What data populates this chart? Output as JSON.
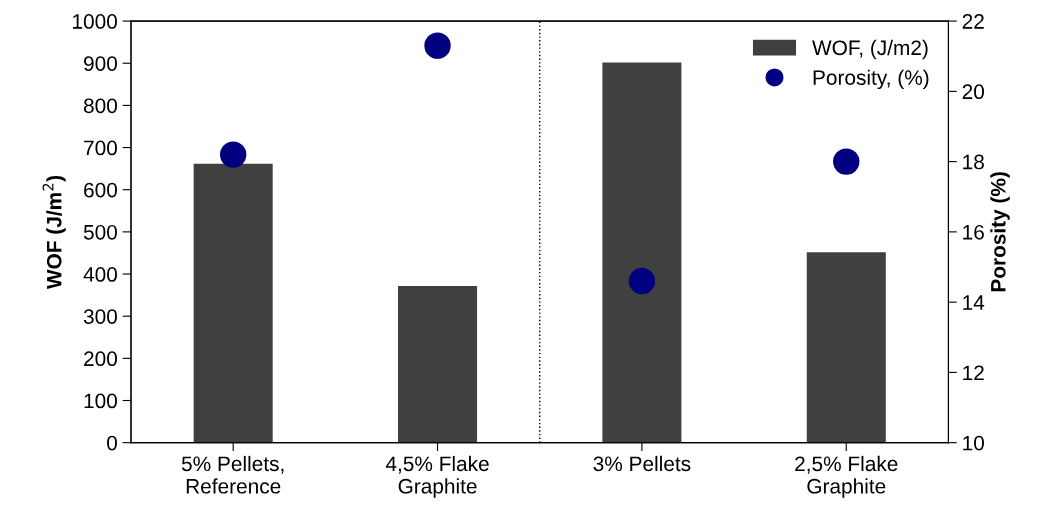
{
  "chart_data": {
    "type": "bar",
    "ylabel": "WOF (J/m$^{2}$)",
    "y2label": "Porosity (%)",
    "categories": [
      "5% Pellets,\nReference",
      "4,5% Flake\nGraphite",
      "3% Pellets",
      "2,5% Flake\nGraphite"
    ],
    "series": [
      {
        "name": "WOF, (J/m2)",
        "color": "#404040",
        "values": [
          660,
          370,
          900,
          450
        ]
      },
      {
        "name": "Porosity, (%)",
        "type": "scatter",
        "axis": "y2",
        "color": "#000080",
        "marker": "circle",
        "values": [
          18.2,
          21.3,
          14.6,
          18.0
        ]
      }
    ],
    "ylim": [
      0,
      1000
    ],
    "yticks": [
      0,
      100,
      200,
      300,
      400,
      500,
      600,
      700,
      800,
      900,
      1000
    ],
    "y2lim": [
      10,
      22
    ],
    "y2ticks": [
      10,
      12,
      14,
      16,
      18,
      20,
      22
    ],
    "grid": false,
    "legend": "top right"
  }
}
